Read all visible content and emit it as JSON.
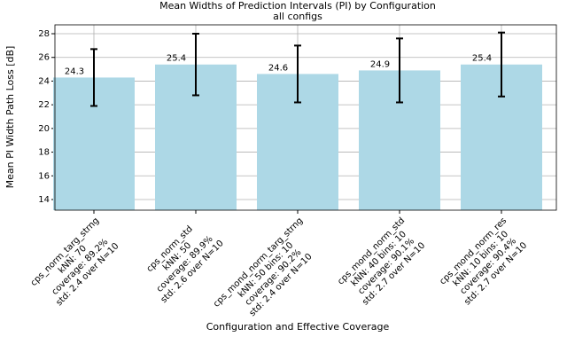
{
  "chart_data": {
    "type": "bar",
    "title": "Mean Widths of Prediction Intervals (PI) by Configuration",
    "subtitle": "all configs",
    "x_label": "Configuration and Effective Coverage",
    "y_label": "Mean PI Width Path Loss [dB]",
    "categories": [
      [
        "cps_norm_targ_strng",
        "kNN: 70",
        "coverage: 89.2%",
        "std: 2.4 over N=10"
      ],
      [
        "cps_norm_std",
        "kNN: 50",
        "coverage: 89.9%",
        "std: 2.6 over N=10"
      ],
      [
        "cps_mond_norm_targ_strng",
        "kNN: 50 bins: 10",
        "coverage: 90.2%",
        "std: 2.4 over N=10"
      ],
      [
        "cps_mond_norm_std",
        "kNN: 40 bins: 10",
        "coverage: 90.1%",
        "std: 2.7 over N=10"
      ],
      [
        "cps_mond_norm_res",
        "kNN: 10 bins: 10",
        "coverage: 90.4%",
        "std: 2.7 over N=10"
      ]
    ],
    "values": [
      24.3,
      25.4,
      24.6,
      24.9,
      25.4
    ],
    "errors": [
      2.4,
      2.6,
      2.4,
      2.7,
      2.7
    ],
    "color": "#add8e6",
    "error_color": "#000000",
    "ylim": [
      13.1,
      28.75
    ],
    "yticks": [
      14,
      16,
      18,
      20,
      22,
      24,
      26,
      28
    ],
    "grid": true
  }
}
